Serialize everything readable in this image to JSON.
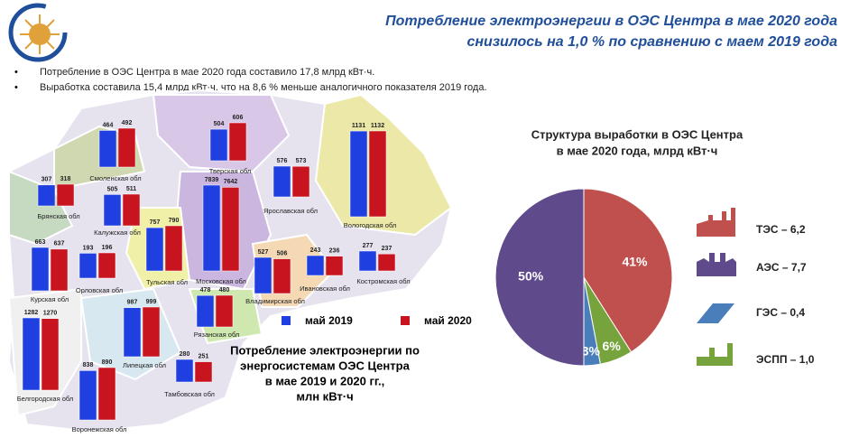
{
  "header": {
    "title_lines": [
      "Потребление электроэнергии в ОЭС Центра в мае 2020 года",
      "снизилось на 1,0 % по сравнению с маем 2019 года"
    ]
  },
  "bullets": [
    "Потребление  в ОЭС Центра  в мае 2020 года составило  17,8 млрд  кВт·ч.",
    "Выработка  составила  15,4 млрд кВт·ч, что  на 8,6 % меньше аналогичного  показателя  2019 года."
  ],
  "chart_data": [
    {
      "type": "map-bar",
      "title_lines": [
        "Потребление электроэнергии по",
        "энергосистемам ОЭС Центра",
        "в мае 2019 и 2020 гг.,",
        "млн кВт·ч"
      ],
      "categories": [
        "Смоленская обл",
        "Брянская обл",
        "Калужская обл",
        "Орловская обл",
        "Курская обл",
        "Белгородская обл",
        "Воронежская обл",
        "Липецкая обл",
        "Тульская обл",
        "Московская обл",
        "Тамбовская обл",
        "Рязанская обл",
        "Владимирская обл",
        "Тверская обл",
        "Ярославская обл",
        "Вологодская обл",
        "Ивановская обл",
        "Костромская обл"
      ],
      "series": [
        {
          "name": "май 2019",
          "color": "#1f3fe0",
          "values": [
            464,
            307,
            505,
            193,
            663,
            1282,
            838,
            987,
            757,
            7839,
            280,
            478,
            527,
            504,
            576,
            1131,
            243,
            277
          ]
        },
        {
          "name": "май 2020",
          "color": "#c8141e",
          "values": [
            492,
            318,
            511,
            196,
            637,
            1270,
            890,
            999,
            790,
            7642,
            251,
            480,
            506,
            606,
            573,
            1132,
            236,
            237
          ]
        }
      ]
    },
    {
      "type": "pie",
      "title_lines": [
        "Структура выработки в ОЭС Центра",
        "в мае 2020 года, млрд кВт·ч"
      ],
      "categories": [
        "ТЭС – 6,2",
        "АЭС – 7,7",
        "ГЭС – 0,4",
        "ЭСПП – 1,0"
      ],
      "values": [
        41,
        50,
        3,
        6
      ],
      "value_labels": [
        "41%",
        "50%",
        "3%",
        "6%"
      ],
      "colors": [
        "#c0504d",
        "#5f4a8b",
        "#4a7ebb",
        "#77a33c"
      ]
    }
  ]
}
